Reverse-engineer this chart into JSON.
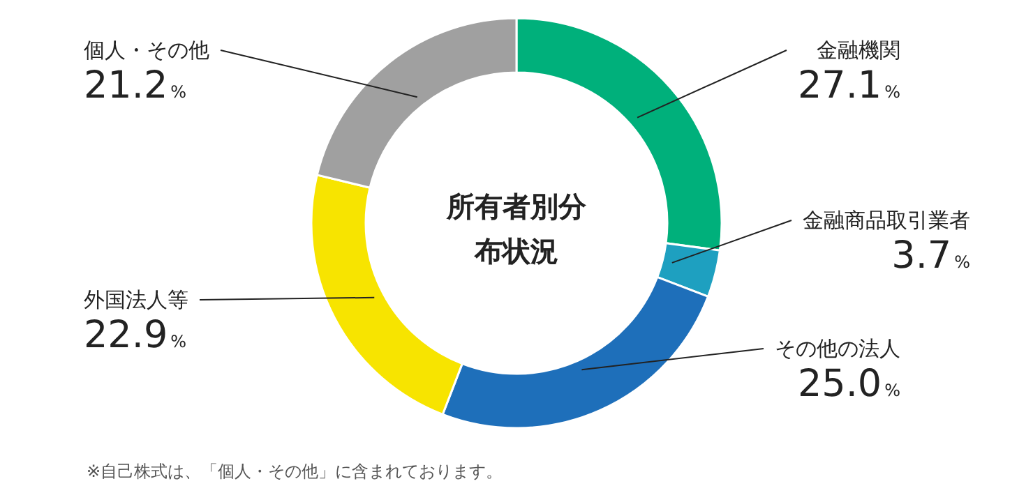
{
  "chart_data": {
    "type": "donut",
    "title": "所有者別分布状況",
    "categories": [
      "金融機関",
      "金融商品取引業者",
      "その他の法人",
      "外国法人等",
      "個人・その他"
    ],
    "values": [
      27.1,
      3.7,
      25.0,
      22.9,
      21.2
    ],
    "value_labels": [
      "27.1%",
      "3.7%",
      "25.0%",
      "22.9%",
      "21.2%"
    ],
    "colors": [
      "#00b07b",
      "#1ea0c0",
      "#1e6fba",
      "#f7e400",
      "#a0a0a0"
    ],
    "annotations": [
      "※自己株式は、「個人・その他」に含まれております。"
    ]
  }
}
